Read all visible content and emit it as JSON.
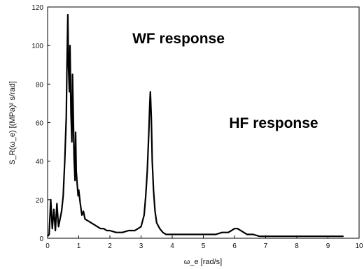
{
  "chart_data": {
    "type": "line",
    "title": "",
    "xlabel": "ω_e [rad/s]",
    "ylabel": "S_R(ω_e) [(MPa)² s/rad]",
    "xlim": [
      0,
      10
    ],
    "ylim": [
      0,
      120
    ],
    "xticks": [
      "0",
      "1",
      "2",
      "3",
      "4",
      "5",
      "6",
      "7",
      "8",
      "9",
      "10"
    ],
    "yticks": [
      "0",
      "20",
      "40",
      "60",
      "80",
      "100",
      "120"
    ],
    "grid": false,
    "colors": {
      "line": "#000000",
      "axes": "#000000",
      "background": "#ffffff"
    },
    "annotations": [
      {
        "text": "WF response",
        "x": 3.3,
        "y": 100
      },
      {
        "text": "HF response",
        "x": 7.3,
        "y": 63
      }
    ],
    "series": [
      {
        "x": [
          0.0,
          0.05,
          0.1,
          0.15,
          0.2,
          0.25,
          0.3,
          0.35,
          0.4,
          0.45,
          0.5,
          0.55,
          0.6,
          0.62,
          0.65,
          0.67,
          0.7,
          0.72,
          0.75,
          0.78,
          0.8,
          0.83,
          0.85,
          0.88,
          0.9,
          0.92,
          0.95,
          0.98,
          1.0,
          1.05,
          1.1,
          1.15,
          1.2,
          1.3,
          1.4,
          1.5,
          1.6,
          1.7,
          1.8,
          1.9,
          2.0,
          2.2,
          2.4,
          2.6,
          2.8,
          3.0,
          3.1,
          3.15,
          3.2,
          3.25,
          3.28,
          3.3,
          3.33,
          3.36,
          3.4,
          3.45,
          3.5,
          3.6,
          3.7,
          3.8,
          4.0,
          4.2,
          4.4,
          4.6,
          4.8,
          5.0,
          5.2,
          5.4,
          5.6,
          5.8,
          5.9,
          6.0,
          6.1,
          6.2,
          6.3,
          6.4,
          6.6,
          6.8,
          7.0,
          7.5,
          8.0,
          8.5,
          9.0,
          9.5
        ],
        "values": [
          1,
          2,
          20,
          5,
          15,
          4,
          18,
          6,
          10,
          14,
          22,
          40,
          63,
          88,
          116,
          90,
          76,
          100,
          65,
          50,
          85,
          60,
          42,
          30,
          55,
          35,
          28,
          22,
          25,
          18,
          12,
          14,
          10,
          9,
          8,
          7,
          6,
          5,
          5,
          4,
          4,
          3,
          3,
          4,
          4,
          6,
          12,
          22,
          35,
          55,
          70,
          76,
          62,
          40,
          25,
          14,
          8,
          5,
          3,
          2,
          2,
          2,
          2,
          2,
          2,
          2,
          2,
          2,
          3,
          3,
          4,
          5,
          5,
          4,
          3,
          2,
          2,
          1,
          1,
          1,
          1,
          1,
          1,
          1
        ]
      }
    ]
  }
}
